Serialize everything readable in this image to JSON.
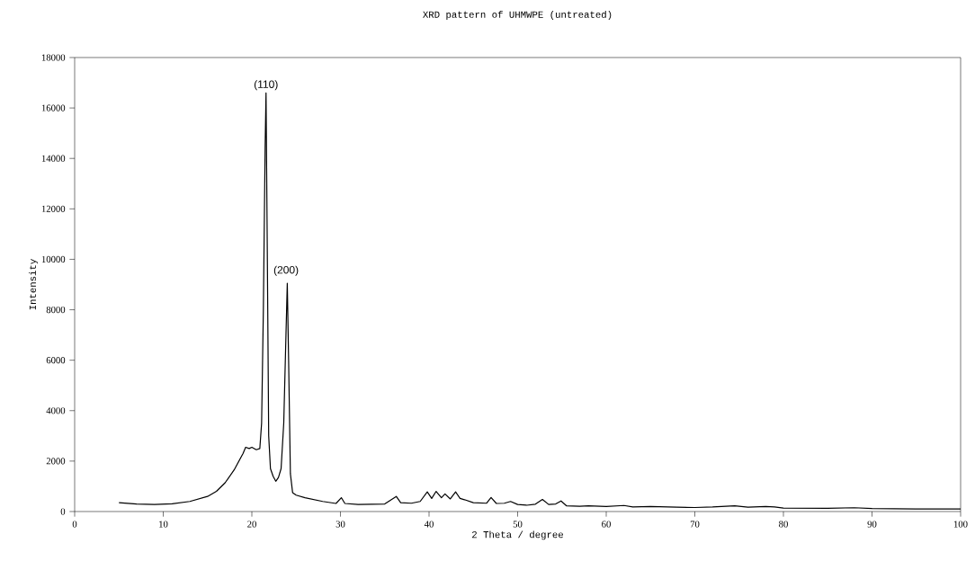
{
  "chart_data": {
    "type": "line",
    "title": "XRD pattern of UHMWPE (untreated)",
    "xlabel": "2 Theta / degree",
    "ylabel": "Intensity",
    "color": "#000000",
    "x": [
      5,
      7,
      9,
      11,
      13,
      15,
      16,
      17,
      18,
      19,
      19.3,
      19.7,
      20,
      20.5,
      20.9,
      21.1,
      21.3,
      21.5,
      21.6,
      21.75,
      21.9,
      22.1,
      22.4,
      22.7,
      23.0,
      23.3,
      23.6,
      23.85,
      24.0,
      24.15,
      24.35,
      24.6,
      25,
      26,
      28,
      29.5,
      30.1,
      30.5,
      32,
      35,
      36.3,
      36.8,
      38,
      39,
      39.8,
      40.3,
      40.8,
      41.4,
      41.8,
      42.4,
      43.0,
      43.5,
      44,
      45,
      46.5,
      47,
      47.6,
      48.5,
      49.2,
      50,
      51,
      52,
      52.8,
      53.5,
      54.3,
      54.9,
      55.5,
      57,
      58,
      60,
      62,
      63,
      65,
      68,
      70,
      72,
      74.5,
      76,
      78,
      79,
      80,
      85,
      88,
      90,
      95,
      100
    ],
    "values": [
      350,
      300,
      280,
      310,
      400,
      600,
      800,
      1150,
      1650,
      2300,
      2550,
      2500,
      2550,
      2450,
      2500,
      3500,
      8000,
      14500,
      16600,
      10000,
      3000,
      1700,
      1400,
      1200,
      1350,
      1700,
      3500,
      7000,
      9050,
      6000,
      1500,
      750,
      650,
      550,
      400,
      320,
      550,
      320,
      280,
      300,
      600,
      350,
      330,
      400,
      780,
      520,
      800,
      550,
      700,
      500,
      780,
      520,
      470,
      350,
      330,
      560,
      320,
      330,
      400,
      280,
      250,
      290,
      480,
      280,
      300,
      420,
      230,
      210,
      230,
      200,
      240,
      180,
      200,
      170,
      160,
      180,
      230,
      170,
      200,
      180,
      140,
      130,
      150,
      120,
      100,
      100
    ],
    "xlim": [
      0,
      100
    ],
    "ylim": [
      0,
      18000
    ],
    "xticks": [
      0,
      10,
      20,
      30,
      40,
      50,
      60,
      70,
      80,
      90,
      100
    ],
    "yticks": [
      0,
      2000,
      4000,
      6000,
      8000,
      10000,
      12000,
      14000,
      16000,
      18000
    ],
    "annotations": [
      {
        "text": "(110)",
        "x": 21.6,
        "y": 16600
      },
      {
        "text": "(200)",
        "x": 24.0,
        "y": 9050
      }
    ]
  }
}
